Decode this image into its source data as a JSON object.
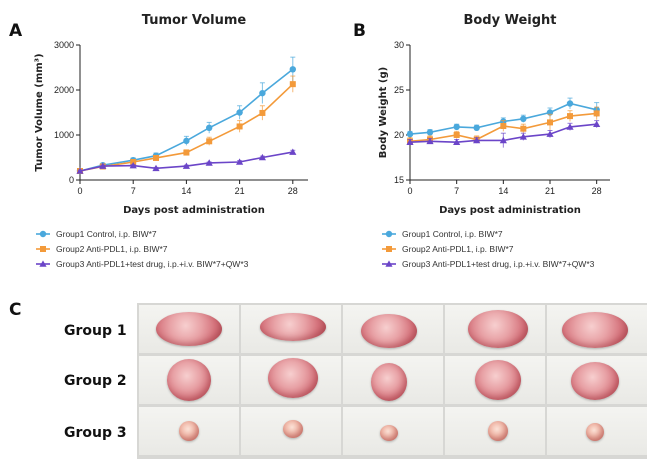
{
  "panels": {
    "a_letter": "A",
    "b_letter": "B",
    "c_letter": "C"
  },
  "colors": {
    "group1": "#4aa8dc",
    "group2": "#f39a3a",
    "group3": "#6b45c8"
  },
  "chart_data": [
    {
      "type": "line",
      "title": "Tumor Volume",
      "xlabel": "Days post administration",
      "ylabel": "Tumor Volume (mm³)",
      "xlim": [
        0,
        30
      ],
      "ylim": [
        0,
        3000
      ],
      "xticks": [
        0,
        7,
        14,
        21,
        28
      ],
      "yticks": [
        0,
        1000,
        2000,
        3000
      ],
      "legend_placement": "bottom",
      "series": [
        {
          "name": "Group1 Control, i.p. BIW*7",
          "marker": "circle",
          "x": [
            0,
            3,
            7,
            10,
            14,
            17,
            21,
            24,
            28
          ],
          "y": [
            200,
            330,
            440,
            540,
            870,
            1160,
            1500,
            1930,
            2460
          ],
          "err": [
            40,
            40,
            50,
            60,
            100,
            120,
            150,
            230,
            270
          ]
        },
        {
          "name": "Group2 Anti-PDL1, i.p. BIW*7",
          "marker": "square",
          "x": [
            0,
            3,
            7,
            10,
            14,
            17,
            21,
            24,
            28
          ],
          "y": [
            200,
            300,
            400,
            490,
            610,
            860,
            1190,
            1490,
            2130
          ],
          "err": [
            30,
            30,
            40,
            50,
            60,
            90,
            130,
            160,
            180
          ]
        },
        {
          "name": "Group3 Anti-PDL1+test drug, i.p.+i.v. BIW*7+QW*3",
          "marker": "triangle",
          "x": [
            0,
            3,
            7,
            10,
            14,
            17,
            21,
            24,
            28
          ],
          "y": [
            200,
            310,
            320,
            260,
            310,
            380,
            400,
            500,
            620
          ],
          "err": [
            20,
            20,
            20,
            20,
            20,
            20,
            30,
            30,
            40
          ]
        }
      ]
    },
    {
      "type": "line",
      "title": "Body Weight",
      "xlabel": "Days post administration",
      "ylabel": "Body Weight (g)",
      "xlim": [
        0,
        30
      ],
      "ylim": [
        15,
        30
      ],
      "xticks": [
        0,
        7,
        14,
        21,
        28
      ],
      "yticks": [
        15,
        20,
        25,
        30
      ],
      "legend_placement": "bottom",
      "series": [
        {
          "name": "Group1 Control, i.p. BIW*7",
          "marker": "circle",
          "x": [
            0,
            3,
            7,
            10,
            14,
            17,
            21,
            24,
            28
          ],
          "y": [
            20.1,
            20.3,
            20.9,
            20.8,
            21.5,
            21.8,
            22.5,
            23.5,
            22.8
          ],
          "err": [
            0.3,
            0.3,
            0.3,
            0.3,
            0.4,
            0.4,
            0.5,
            0.6,
            0.8
          ]
        },
        {
          "name": "Group2 Anti-PDL1, i.p. BIW*7",
          "marker": "square",
          "x": [
            0,
            3,
            7,
            10,
            14,
            17,
            21,
            24,
            28
          ],
          "y": [
            19.3,
            19.5,
            20.0,
            19.5,
            21.0,
            20.7,
            21.4,
            22.1,
            22.4
          ],
          "err": [
            0.4,
            0.4,
            0.4,
            0.4,
            0.6,
            0.5,
            0.9,
            0.6,
            0.7
          ]
        },
        {
          "name": "Group3 Anti-PDL1+test drug, i.p.+i.v. BIW*7+QW*3",
          "marker": "triangle",
          "x": [
            0,
            3,
            7,
            10,
            14,
            17,
            21,
            24,
            28
          ],
          "y": [
            19.2,
            19.3,
            19.2,
            19.4,
            19.4,
            19.8,
            20.1,
            20.9,
            21.2
          ],
          "err": [
            0.3,
            0.3,
            0.3,
            0.3,
            0.8,
            0.4,
            0.4,
            0.4,
            0.4
          ]
        }
      ]
    }
  ],
  "photo": {
    "group_labels": [
      "Group 1",
      "Group 2",
      "Group 3"
    ]
  }
}
